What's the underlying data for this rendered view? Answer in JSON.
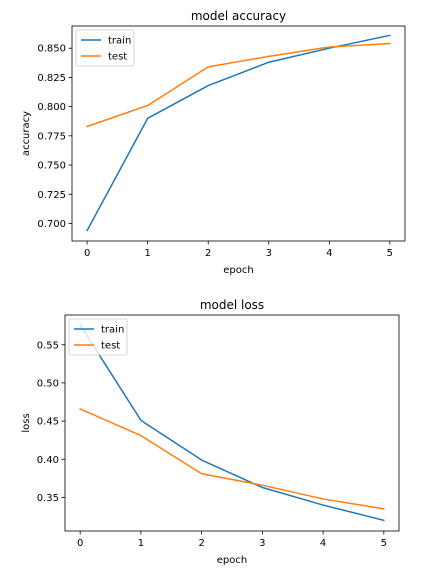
{
  "chart_data": [
    {
      "type": "line",
      "title": "model accuracy",
      "xlabel": "epoch",
      "ylabel": "accuracy",
      "x": [
        0,
        1,
        2,
        3,
        4,
        5
      ],
      "xticks": [
        "0",
        "1",
        "2",
        "3",
        "4",
        "5"
      ],
      "yticks": [
        "0.700",
        "0.725",
        "0.750",
        "0.775",
        "0.800",
        "0.825",
        "0.850"
      ],
      "xlim": [
        -0.25,
        5.25
      ],
      "ylim": [
        0.685,
        0.869
      ],
      "grid": false,
      "legend_position": "upper-left",
      "series": [
        {
          "name": "train",
          "color": "#1f77b4",
          "values": [
            0.694,
            0.79,
            0.818,
            0.838,
            0.85,
            0.861
          ]
        },
        {
          "name": "test",
          "color": "#ff7f0e",
          "values": [
            0.783,
            0.801,
            0.834,
            0.843,
            0.851,
            0.854
          ]
        }
      ]
    },
    {
      "type": "line",
      "title": "model loss",
      "xlabel": "epoch",
      "ylabel": "loss",
      "x": [
        0,
        1,
        2,
        3,
        4,
        5
      ],
      "xticks": [
        "0",
        "1",
        "2",
        "3",
        "4",
        "5"
      ],
      "yticks": [
        "0.35",
        "0.40",
        "0.45",
        "0.50",
        "0.55"
      ],
      "xlim": [
        -0.25,
        5.25
      ],
      "ylim": [
        0.306,
        0.589
      ],
      "grid": false,
      "legend_position": "upper-left",
      "series": [
        {
          "name": "train",
          "color": "#1f77b4",
          "values": [
            0.576,
            0.451,
            0.399,
            0.363,
            0.34,
            0.32
          ]
        },
        {
          "name": "test",
          "color": "#ff7f0e",
          "values": [
            0.466,
            0.431,
            0.381,
            0.366,
            0.348,
            0.335
          ]
        }
      ]
    }
  ]
}
